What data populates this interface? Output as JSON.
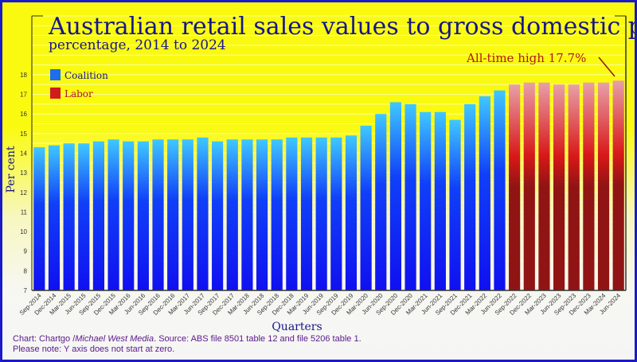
{
  "chart_data": {
    "type": "bar",
    "title": "Australian retail sales values to gross domestic product",
    "subtitle": "percentage, 2014 to 2024",
    "xlabel": "Quarters",
    "ylabel": "Per cent",
    "ylim": [
      7,
      21
    ],
    "yticks": [
      7,
      8,
      9,
      10,
      11,
      12,
      13,
      14,
      15,
      16,
      17,
      18
    ],
    "grid": true,
    "legend_position": "top-left",
    "categories": [
      "Sep-2014",
      "Dec-2014",
      "Mar-2015",
      "Jun-2015",
      "Sep-2015",
      "Dec-2015",
      "Mar-2016",
      "Jun-2016",
      "Sep-2016",
      "Dec-2016",
      "Mar-2017",
      "Jun-2017",
      "Sep-2017",
      "Dec-2017",
      "Mar-2018",
      "Jun-2018",
      "Sep-2018",
      "Dec-2018",
      "Mar-2019",
      "Jun-2019",
      "Sep-2019",
      "Dec-2019",
      "Mar-2020",
      "Jun-2020",
      "Sep-2020",
      "Dec-2020",
      "Mar-2021",
      "Jun-2021",
      "Sep-2021",
      "Dec-2021",
      "Mar-2022",
      "Jun-2022",
      "Sep-2022",
      "Dec-2022",
      "Mar-2023",
      "Jun-2023",
      "Sep-2023",
      "Dec-2023",
      "Mar-2024",
      "Jun-2024"
    ],
    "values": [
      14.3,
      14.4,
      14.5,
      14.5,
      14.6,
      14.7,
      14.6,
      14.6,
      14.7,
      14.7,
      14.7,
      14.8,
      14.6,
      14.7,
      14.7,
      14.7,
      14.7,
      14.8,
      14.8,
      14.8,
      14.8,
      14.9,
      15.4,
      16.0,
      16.6,
      16.5,
      16.1,
      16.1,
      15.7,
      16.5,
      16.9,
      17.2,
      17.5,
      17.6,
      17.6,
      17.5,
      17.5,
      17.6,
      17.6,
      17.7
    ],
    "government": [
      "Coalition",
      "Coalition",
      "Coalition",
      "Coalition",
      "Coalition",
      "Coalition",
      "Coalition",
      "Coalition",
      "Coalition",
      "Coalition",
      "Coalition",
      "Coalition",
      "Coalition",
      "Coalition",
      "Coalition",
      "Coalition",
      "Coalition",
      "Coalition",
      "Coalition",
      "Coalition",
      "Coalition",
      "Coalition",
      "Coalition",
      "Coalition",
      "Coalition",
      "Coalition",
      "Coalition",
      "Coalition",
      "Coalition",
      "Coalition",
      "Coalition",
      "Coalition",
      "Labor",
      "Labor",
      "Labor",
      "Labor",
      "Labor",
      "Labor",
      "Labor",
      "Labor"
    ],
    "legend": [
      {
        "name": "Coalition",
        "color": "#1e6cf0"
      },
      {
        "name": "Labor",
        "color": "#d01c1c"
      }
    ],
    "annotation": "All-time high 17.7%"
  },
  "footer": {
    "credit_prefix": "Chart: Chartgo /",
    "credit_italic": "Michael West Media",
    "credit_suffix": ". Source: ABS file 8501 table 12 and file 5206 table 1.",
    "note": "Please note: Y axis does not start at zero."
  }
}
